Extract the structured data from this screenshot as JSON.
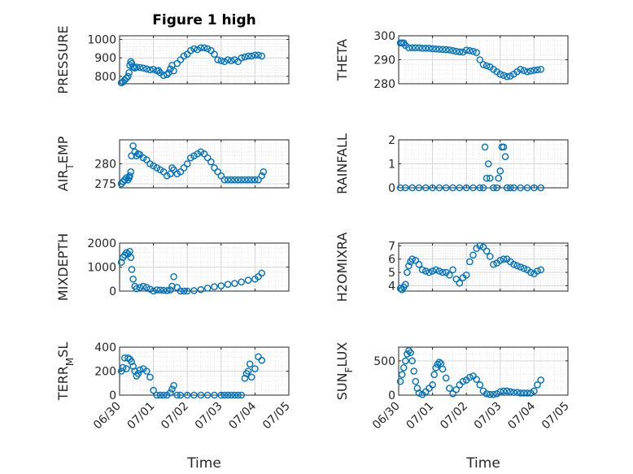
{
  "figure": {
    "title": "Figure 1 high",
    "xlabel": "Time",
    "xticks": [
      "06/30",
      "07/01",
      "07/02",
      "07/03",
      "07/04",
      "07/05"
    ],
    "marker_color": "#0072BD"
  },
  "chart_data": [
    {
      "type": "scatter",
      "title": "Figure 1 high",
      "ylabel_main": "PRESSURE",
      "ylabel_sub": "",
      "ylabel_rest": "",
      "xlabel": "",
      "xlim": [
        "06/30",
        "07/05"
      ],
      "ylim": [
        760,
        1020
      ],
      "yticks": [
        800,
        900,
        1000
      ],
      "x": [
        0.05,
        0.1,
        0.15,
        0.2,
        0.25,
        0.28,
        0.3,
        0.33,
        0.36,
        0.4,
        0.45,
        0.5,
        0.6,
        0.7,
        0.8,
        0.9,
        1.0,
        1.1,
        1.15,
        1.2,
        1.3,
        1.4,
        1.45,
        1.5,
        1.55,
        1.6,
        1.7,
        1.8,
        1.9,
        2.0,
        2.1,
        2.2,
        2.3,
        2.4,
        2.5,
        2.6,
        2.7,
        2.8,
        2.9,
        3.0,
        3.1,
        3.2,
        3.3,
        3.4,
        3.5,
        3.6,
        3.7,
        3.8,
        3.9,
        4.0,
        4.1,
        4.2
      ],
      "y": [
        765,
        770,
        780,
        790,
        800,
        820,
        860,
        880,
        870,
        850,
        845,
        850,
        848,
        845,
        840,
        835,
        838,
        830,
        832,
        820,
        805,
        810,
        820,
        840,
        860,
        830,
        870,
        890,
        910,
        920,
        940,
        950,
        945,
        955,
        955,
        950,
        940,
        920,
        890,
        885,
        880,
        890,
        885,
        890,
        880,
        900,
        905,
        910,
        910,
        915,
        915,
        910
      ]
    },
    {
      "type": "scatter",
      "ylabel_main": "THETA",
      "ylabel_sub": "",
      "ylabel_rest": "",
      "xlabel": "",
      "xlim": [
        "06/30",
        "07/05"
      ],
      "ylim": [
        280,
        300
      ],
      "yticks": [
        280,
        290,
        300
      ],
      "x": [
        0.05,
        0.1,
        0.15,
        0.2,
        0.3,
        0.4,
        0.5,
        0.6,
        0.7,
        0.8,
        0.9,
        1.0,
        1.1,
        1.2,
        1.3,
        1.4,
        1.5,
        1.6,
        1.7,
        1.8,
        1.9,
        2.0,
        2.1,
        2.2,
        2.3,
        2.4,
        2.5,
        2.6,
        2.7,
        2.8,
        2.9,
        3.0,
        3.1,
        3.2,
        3.3,
        3.4,
        3.5,
        3.6,
        3.7,
        3.8,
        3.9,
        4.0,
        4.1,
        4.2
      ],
      "y": [
        297,
        297,
        297,
        296,
        295,
        295,
        295,
        295,
        294.8,
        294.8,
        294.8,
        294.6,
        294.5,
        294.4,
        294.3,
        294.2,
        294.1,
        293.8,
        293.5,
        293.3,
        293.2,
        294,
        293.8,
        293.5,
        293,
        290,
        288,
        287.5,
        287,
        286,
        285,
        284,
        283.5,
        283,
        283.2,
        284,
        285,
        286,
        285.5,
        285,
        285.3,
        285.6,
        285.8,
        286
      ]
    },
    {
      "type": "scatter",
      "ylabel_main": "AIR",
      "ylabel_sub": "T",
      "ylabel_rest": "EMP",
      "xlabel": "",
      "xlim": [
        "06/30",
        "07/05"
      ],
      "ylim": [
        274,
        286
      ],
      "yticks": [
        275,
        280
      ],
      "x": [
        0.05,
        0.1,
        0.15,
        0.2,
        0.25,
        0.28,
        0.3,
        0.33,
        0.35,
        0.4,
        0.45,
        0.5,
        0.55,
        0.6,
        0.7,
        0.8,
        0.9,
        1.0,
        1.1,
        1.2,
        1.3,
        1.4,
        1.5,
        1.55,
        1.6,
        1.7,
        1.8,
        1.9,
        2.0,
        2.1,
        2.2,
        2.3,
        2.4,
        2.5,
        2.6,
        2.7,
        2.8,
        2.9,
        3.0,
        3.1,
        3.2,
        3.3,
        3.4,
        3.5,
        3.6,
        3.7,
        3.8,
        3.9,
        4.0,
        4.1,
        4.2,
        4.25
      ],
      "y": [
        275,
        275.5,
        276,
        276.5,
        276,
        276.5,
        277,
        278,
        282,
        284.5,
        283,
        282,
        282.5,
        282.3,
        281.5,
        281,
        280,
        279.5,
        279,
        278.5,
        278,
        277,
        277.5,
        279,
        278.5,
        277.5,
        278,
        279,
        280,
        281.5,
        282,
        282.5,
        283,
        282.5,
        281.5,
        280.5,
        279,
        278,
        277,
        276,
        276,
        276,
        276,
        276,
        276,
        276,
        276,
        276,
        276,
        276,
        277,
        278
      ]
    },
    {
      "type": "scatter",
      "ylabel_main": "RAINFALL",
      "ylabel_sub": "",
      "ylabel_rest": "",
      "xlabel": "",
      "xlim": [
        "06/30",
        "07/05"
      ],
      "ylim": [
        0,
        2
      ],
      "yticks": [
        0,
        1,
        2
      ],
      "x": [
        0.05,
        0.2,
        0.4,
        0.6,
        0.8,
        1.0,
        1.2,
        1.4,
        1.6,
        1.8,
        2.0,
        2.2,
        2.4,
        2.5,
        2.55,
        2.6,
        2.65,
        2.7,
        2.8,
        2.9,
        2.95,
        3.0,
        3.05,
        3.1,
        3.15,
        3.2,
        3.3,
        3.4,
        3.6,
        3.8,
        4.0,
        4.2
      ],
      "y": [
        0,
        0,
        0,
        0,
        0,
        0,
        0,
        0,
        0,
        0,
        0,
        0,
        0,
        0,
        1.7,
        0.4,
        1.0,
        0.4,
        0,
        0,
        0.4,
        0.7,
        1.7,
        1.7,
        1.3,
        0,
        0,
        0,
        0,
        0,
        0,
        0
      ]
    },
    {
      "type": "scatter",
      "ylabel_main": "MIXDEPTH",
      "ylabel_sub": "",
      "ylabel_rest": "",
      "xlabel": "",
      "xlim": [
        "06/30",
        "07/05"
      ],
      "ylim": [
        0,
        2000
      ],
      "yticks": [
        0,
        1000,
        2000
      ],
      "x": [
        0.05,
        0.1,
        0.15,
        0.2,
        0.25,
        0.3,
        0.33,
        0.36,
        0.4,
        0.45,
        0.5,
        0.6,
        0.7,
        0.8,
        0.9,
        1.0,
        1.1,
        1.2,
        1.3,
        1.4,
        1.5,
        1.55,
        1.6,
        1.7,
        1.8,
        1.9,
        2.0,
        2.2,
        2.4,
        2.6,
        2.8,
        3.0,
        3.2,
        3.4,
        3.6,
        3.8,
        4.0,
        4.1,
        4.2
      ],
      "y": [
        1200,
        1400,
        1500,
        1600,
        1550,
        1650,
        1400,
        900,
        500,
        200,
        100,
        150,
        200,
        150,
        80,
        0,
        50,
        40,
        30,
        20,
        50,
        200,
        600,
        150,
        0,
        0,
        0,
        20,
        60,
        120,
        180,
        220,
        280,
        320,
        380,
        450,
        500,
        600,
        750
      ]
    },
    {
      "type": "scatter",
      "ylabel_main": "H2OMIXRA",
      "ylabel_sub": "",
      "ylabel_rest": "",
      "xlabel": "",
      "xlim": [
        "06/30",
        "07/05"
      ],
      "ylim": [
        3.6,
        7.2
      ],
      "yticks": [
        4,
        5,
        6,
        7
      ],
      "x": [
        0.05,
        0.1,
        0.15,
        0.2,
        0.25,
        0.3,
        0.35,
        0.4,
        0.5,
        0.6,
        0.7,
        0.8,
        0.9,
        1.0,
        1.1,
        1.2,
        1.3,
        1.4,
        1.5,
        1.6,
        1.7,
        1.8,
        1.9,
        2.0,
        2.1,
        2.2,
        2.3,
        2.4,
        2.5,
        2.6,
        2.7,
        2.8,
        2.9,
        3.0,
        3.1,
        3.2,
        3.3,
        3.4,
        3.5,
        3.6,
        3.7,
        3.8,
        3.9,
        4.0,
        4.1,
        4.2
      ],
      "y": [
        3.8,
        3.7,
        3.9,
        4.1,
        5.0,
        5.5,
        5.8,
        6.0,
        5.9,
        5.6,
        5.2,
        5.1,
        5.0,
        5.1,
        5.2,
        5.1,
        5.0,
        5.0,
        4.8,
        5.2,
        4.5,
        4.2,
        4.6,
        4.8,
        5.8,
        6.3,
        6.8,
        7.0,
        6.9,
        6.6,
        6.2,
        5.6,
        5.7,
        5.9,
        6.0,
        6.0,
        5.8,
        5.6,
        5.5,
        5.4,
        5.3,
        5.2,
        5.0,
        4.9,
        5.1,
        5.2
      ]
    },
    {
      "type": "scatter",
      "ylabel_main": "TERR",
      "ylabel_sub": "M",
      "ylabel_rest": "SL",
      "xlabel": "",
      "xlim": [
        "06/30",
        "07/05"
      ],
      "ylim": [
        0,
        400
      ],
      "yticks": [
        0,
        200,
        400
      ],
      "x": [
        0.05,
        0.1,
        0.15,
        0.2,
        0.25,
        0.3,
        0.35,
        0.4,
        0.45,
        0.5,
        0.55,
        0.6,
        0.7,
        0.8,
        0.9,
        1.0,
        1.1,
        1.2,
        1.3,
        1.4,
        1.5,
        1.55,
        1.6,
        1.7,
        1.8,
        2.0,
        2.2,
        2.4,
        2.6,
        2.8,
        3.0,
        3.1,
        3.2,
        3.3,
        3.4,
        3.5,
        3.6,
        3.7,
        3.75,
        3.8,
        3.85,
        3.9,
        4.0,
        4.1,
        4.2
      ],
      "y": [
        200,
        230,
        310,
        220,
        310,
        300,
        280,
        240,
        200,
        160,
        180,
        210,
        220,
        200,
        150,
        40,
        0,
        0,
        0,
        0,
        20,
        50,
        80,
        0,
        0,
        0,
        0,
        0,
        0,
        0,
        0,
        0,
        0,
        0,
        0,
        0,
        0,
        140,
        180,
        200,
        260,
        150,
        220,
        320,
        290
      ]
    },
    {
      "type": "scatter",
      "ylabel_main": "SUN",
      "ylabel_sub": "F",
      "ylabel_rest": "LUX",
      "xlabel": "",
      "xlim": [
        "06/30",
        "07/05"
      ],
      "ylim": [
        0,
        700
      ],
      "yticks": [
        0,
        500
      ],
      "x": [
        0.05,
        0.1,
        0.15,
        0.2,
        0.25,
        0.3,
        0.35,
        0.4,
        0.45,
        0.5,
        0.55,
        0.6,
        0.7,
        0.8,
        0.9,
        1.0,
        1.05,
        1.1,
        1.15,
        1.2,
        1.25,
        1.3,
        1.4,
        1.5,
        1.6,
        1.7,
        1.8,
        1.9,
        2.0,
        2.1,
        2.2,
        2.3,
        2.4,
        2.5,
        2.6,
        2.7,
        2.8,
        2.9,
        3.0,
        3.1,
        3.2,
        3.3,
        3.4,
        3.5,
        3.6,
        3.7,
        3.8,
        3.9,
        4.0,
        4.1,
        4.2
      ],
      "y": [
        200,
        300,
        400,
        500,
        600,
        650,
        620,
        500,
        350,
        200,
        100,
        30,
        10,
        50,
        100,
        150,
        300,
        400,
        450,
        480,
        460,
        380,
        250,
        100,
        20,
        80,
        150,
        200,
        220,
        260,
        280,
        230,
        150,
        60,
        20,
        10,
        10,
        20,
        50,
        60,
        60,
        50,
        40,
        40,
        30,
        30,
        30,
        30,
        60,
        150,
        220
      ]
    }
  ]
}
